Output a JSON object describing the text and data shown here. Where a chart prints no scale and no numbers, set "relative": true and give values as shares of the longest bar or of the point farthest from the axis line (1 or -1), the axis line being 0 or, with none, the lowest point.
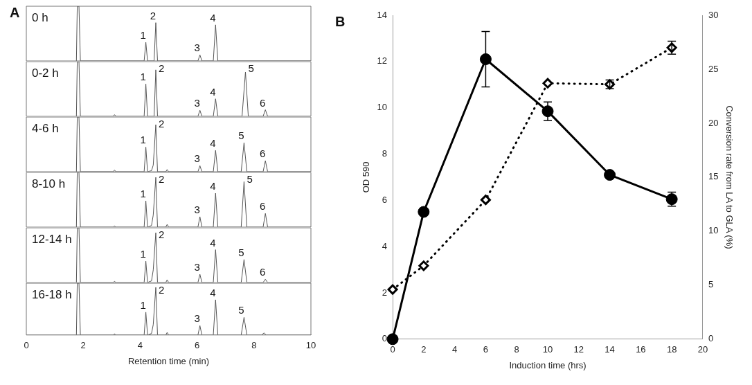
{
  "chart_data": [
    {
      "type": "line",
      "title": "0 h",
      "relative": true,
      "xlim": [
        0,
        10
      ],
      "tick_labels": false,
      "annotations": [
        "A",
        {
          "text": "1",
          "x": 4.2,
          "y": 0.34
        },
        {
          "text": "2",
          "x": 4.55,
          "y": 0.7
        },
        {
          "text": "3",
          "x": 6.1,
          "y": 0.11
        },
        {
          "text": "4",
          "x": 6.65,
          "y": 0.66
        }
      ],
      "series": [
        {
          "color": "#555555",
          "x": [
            1.76,
            1.79,
            1.85,
            1.9,
            4.14,
            4.2,
            4.26,
            4.49,
            4.55,
            4.61,
            6.03,
            6.1,
            6.17,
            6.57,
            6.65,
            6.73,
            10
          ],
          "values": [
            0,
            1,
            1,
            0,
            0,
            0.34,
            0,
            0,
            0.7,
            0,
            0,
            0.11,
            0,
            0,
            0.66,
            0,
            0
          ]
        }
      ]
    },
    {
      "type": "line",
      "title": "0-2 h",
      "relative": true,
      "xlim": [
        0,
        10
      ],
      "tick_labels": false,
      "annotations": [
        {
          "text": "1",
          "x": 4.2,
          "y": 0.59
        },
        {
          "text": "2",
          "x": 4.55,
          "y": 0.85
        },
        {
          "text": "3",
          "x": 6.1,
          "y": 0.11
        },
        {
          "text": "4",
          "x": 6.65,
          "y": 0.32
        },
        {
          "text": "5",
          "x": 7.7,
          "y": 0.81
        },
        {
          "text": "6",
          "x": 8.4,
          "y": 0.12
        }
      ],
      "series": [
        {
          "color": "#555555",
          "x": [
            1.76,
            1.79,
            1.85,
            1.9,
            3.05,
            3.1,
            3.15,
            4.14,
            4.2,
            4.26,
            4.49,
            4.55,
            4.61,
            6.03,
            6.1,
            6.17,
            6.57,
            6.65,
            6.73,
            7.58,
            7.7,
            7.8,
            8.32,
            8.4,
            8.48,
            10
          ],
          "values": [
            0,
            1,
            1,
            0,
            0,
            0.03,
            0,
            0,
            0.59,
            0,
            0,
            0.85,
            0,
            0,
            0.11,
            0,
            0,
            0.32,
            0,
            0,
            0.81,
            0,
            0,
            0.12,
            0,
            0
          ]
        }
      ]
    },
    {
      "type": "line",
      "title": "4-6 h",
      "relative": true,
      "xlim": [
        0,
        10
      ],
      "tick_labels": false,
      "annotations": [
        {
          "text": "1",
          "x": 4.2,
          "y": 0.45
        },
        {
          "text": "2",
          "x": 4.55,
          "y": 0.86
        },
        {
          "text": "3",
          "x": 6.1,
          "y": 0.11
        },
        {
          "text": "4",
          "x": 6.65,
          "y": 0.39
        },
        {
          "text": "5",
          "x": 7.65,
          "y": 0.53
        },
        {
          "text": "6",
          "x": 8.4,
          "y": 0.2
        }
      ],
      "series": [
        {
          "color": "#555555",
          "x": [
            1.76,
            1.79,
            1.85,
            1.9,
            3.05,
            3.1,
            3.15,
            4.14,
            4.2,
            4.26,
            4.4,
            4.46,
            4.55,
            4.61,
            4.9,
            4.95,
            5.0,
            6.03,
            6.1,
            6.17,
            6.57,
            6.65,
            6.73,
            7.55,
            7.65,
            7.75,
            8.32,
            8.4,
            8.48,
            10
          ],
          "values": [
            0,
            1,
            1,
            0,
            0,
            0.03,
            0,
            0,
            0.45,
            0,
            0.02,
            0.12,
            0.86,
            0,
            0,
            0.04,
            0,
            0,
            0.11,
            0,
            0,
            0.39,
            0,
            0,
            0.53,
            0,
            0,
            0.2,
            0,
            0
          ]
        }
      ]
    },
    {
      "type": "line",
      "title": "8-10 h",
      "relative": true,
      "xlim": [
        0,
        10
      ],
      "tick_labels": false,
      "annotations": [
        {
          "text": "1",
          "x": 4.2,
          "y": 0.48
        },
        {
          "text": "2",
          "x": 4.55,
          "y": 0.91
        },
        {
          "text": "3",
          "x": 6.1,
          "y": 0.19
        },
        {
          "text": "4",
          "x": 6.65,
          "y": 0.62
        },
        {
          "text": "5",
          "x": 7.65,
          "y": 0.83
        },
        {
          "text": "6",
          "x": 8.4,
          "y": 0.25
        }
      ],
      "series": [
        {
          "color": "#555555",
          "x": [
            1.76,
            1.79,
            1.85,
            1.9,
            3.05,
            3.1,
            3.15,
            4.14,
            4.2,
            4.26,
            4.4,
            4.46,
            4.55,
            4.61,
            4.9,
            4.95,
            5.0,
            6.03,
            6.1,
            6.17,
            6.57,
            6.65,
            6.73,
            7.55,
            7.65,
            7.75,
            8.32,
            8.4,
            8.48,
            10
          ],
          "values": [
            0,
            1,
            1,
            0,
            0,
            0.02,
            0,
            0,
            0.48,
            0,
            0.03,
            0.22,
            0.91,
            0,
            0,
            0.05,
            0,
            0,
            0.19,
            0,
            0,
            0.62,
            0,
            0,
            0.83,
            0,
            0,
            0.25,
            0,
            0
          ]
        }
      ]
    },
    {
      "type": "line",
      "title": "12-14 h",
      "relative": true,
      "xlim": [
        0,
        10
      ],
      "tick_labels": false,
      "annotations": [
        {
          "text": "1",
          "x": 4.2,
          "y": 0.39
        },
        {
          "text": "2",
          "x": 4.55,
          "y": 0.91
        },
        {
          "text": "3",
          "x": 6.1,
          "y": 0.15
        },
        {
          "text": "4",
          "x": 6.65,
          "y": 0.6
        },
        {
          "text": "5",
          "x": 7.65,
          "y": 0.42
        },
        {
          "text": "6",
          "x": 8.4,
          "y": 0.06
        }
      ],
      "series": [
        {
          "color": "#555555",
          "x": [
            1.76,
            1.79,
            1.85,
            1.9,
            3.05,
            3.1,
            3.15,
            4.14,
            4.2,
            4.26,
            4.4,
            4.46,
            4.55,
            4.61,
            4.9,
            4.95,
            5.0,
            6.03,
            6.1,
            6.17,
            6.57,
            6.65,
            6.73,
            7.55,
            7.65,
            7.75,
            8.32,
            8.4,
            8.48,
            10
          ],
          "values": [
            0,
            1,
            1,
            0,
            0,
            0.02,
            0,
            0,
            0.39,
            0,
            0.03,
            0.23,
            0.91,
            0,
            0,
            0.05,
            0,
            0,
            0.15,
            0,
            0,
            0.6,
            0,
            0,
            0.42,
            0,
            0,
            0.06,
            0,
            0
          ]
        }
      ]
    },
    {
      "type": "line",
      "title": "16-18 h",
      "relative": true,
      "xlim": [
        0,
        10
      ],
      "xticks": [
        0,
        2,
        4,
        6,
        8,
        10
      ],
      "tick_labels": "x",
      "xlabel": "Retention time (min)",
      "annotations": [
        {
          "text": "1",
          "x": 4.2,
          "y": 0.44
        },
        {
          "text": "2",
          "x": 4.55,
          "y": 0.92
        },
        {
          "text": "3",
          "x": 6.1,
          "y": 0.18
        },
        {
          "text": "4",
          "x": 6.65,
          "y": 0.68
        },
        {
          "text": "5",
          "x": 7.65,
          "y": 0.34
        }
      ],
      "series": [
        {
          "color": "#555555",
          "x": [
            1.76,
            1.79,
            1.85,
            1.9,
            3.05,
            3.1,
            3.15,
            4.14,
            4.2,
            4.26,
            4.4,
            4.46,
            4.55,
            4.61,
            4.9,
            4.95,
            5.0,
            6.03,
            6.1,
            6.17,
            6.57,
            6.65,
            6.73,
            7.55,
            7.65,
            7.75,
            8.27,
            8.35,
            8.43,
            10
          ],
          "values": [
            0,
            1,
            1,
            0,
            0,
            0.02,
            0,
            0,
            0.44,
            0,
            0.03,
            0.2,
            0.92,
            0,
            0,
            0.05,
            0,
            0,
            0.18,
            0,
            0,
            0.68,
            0,
            0,
            0.34,
            0,
            0,
            0.04,
            0,
            0
          ]
        }
      ]
    },
    {
      "type": "line",
      "xlabel": "Induction time (hrs)",
      "ylabel": "OD 590",
      "y2label": "Conversion rate from LA to GLA (%)",
      "annotations": [
        "B"
      ],
      "x": [
        0,
        2,
        6,
        10,
        14,
        18
      ],
      "xlim": [
        0,
        20
      ],
      "xticks": [
        0,
        2,
        4,
        6,
        8,
        10,
        12,
        14,
        16,
        18,
        20
      ],
      "ylim": [
        0,
        14
      ],
      "yticks": [
        0,
        2,
        4,
        6,
        8,
        10,
        12,
        14
      ],
      "y2lim": [
        0,
        30
      ],
      "y2ticks": [
        0,
        5,
        10,
        15,
        20,
        25,
        30
      ],
      "series": [
        {
          "color": "#000000",
          "marker": "circle",
          "line_style": "solid",
          "values": [
            0,
            5.5,
            12.1,
            9.85,
            7.1,
            6.05
          ],
          "errors": [
            null,
            null,
            1.2,
            0.4,
            null,
            0.3
          ]
        },
        {
          "color": "#000000",
          "marker": "diamond",
          "line_style": "dotted",
          "axis": "y2",
          "values": [
            4.6,
            6.8,
            12.9,
            23.7,
            23.6,
            27
          ],
          "errors": [
            null,
            null,
            null,
            null,
            0.4,
            0.6
          ]
        }
      ]
    }
  ]
}
